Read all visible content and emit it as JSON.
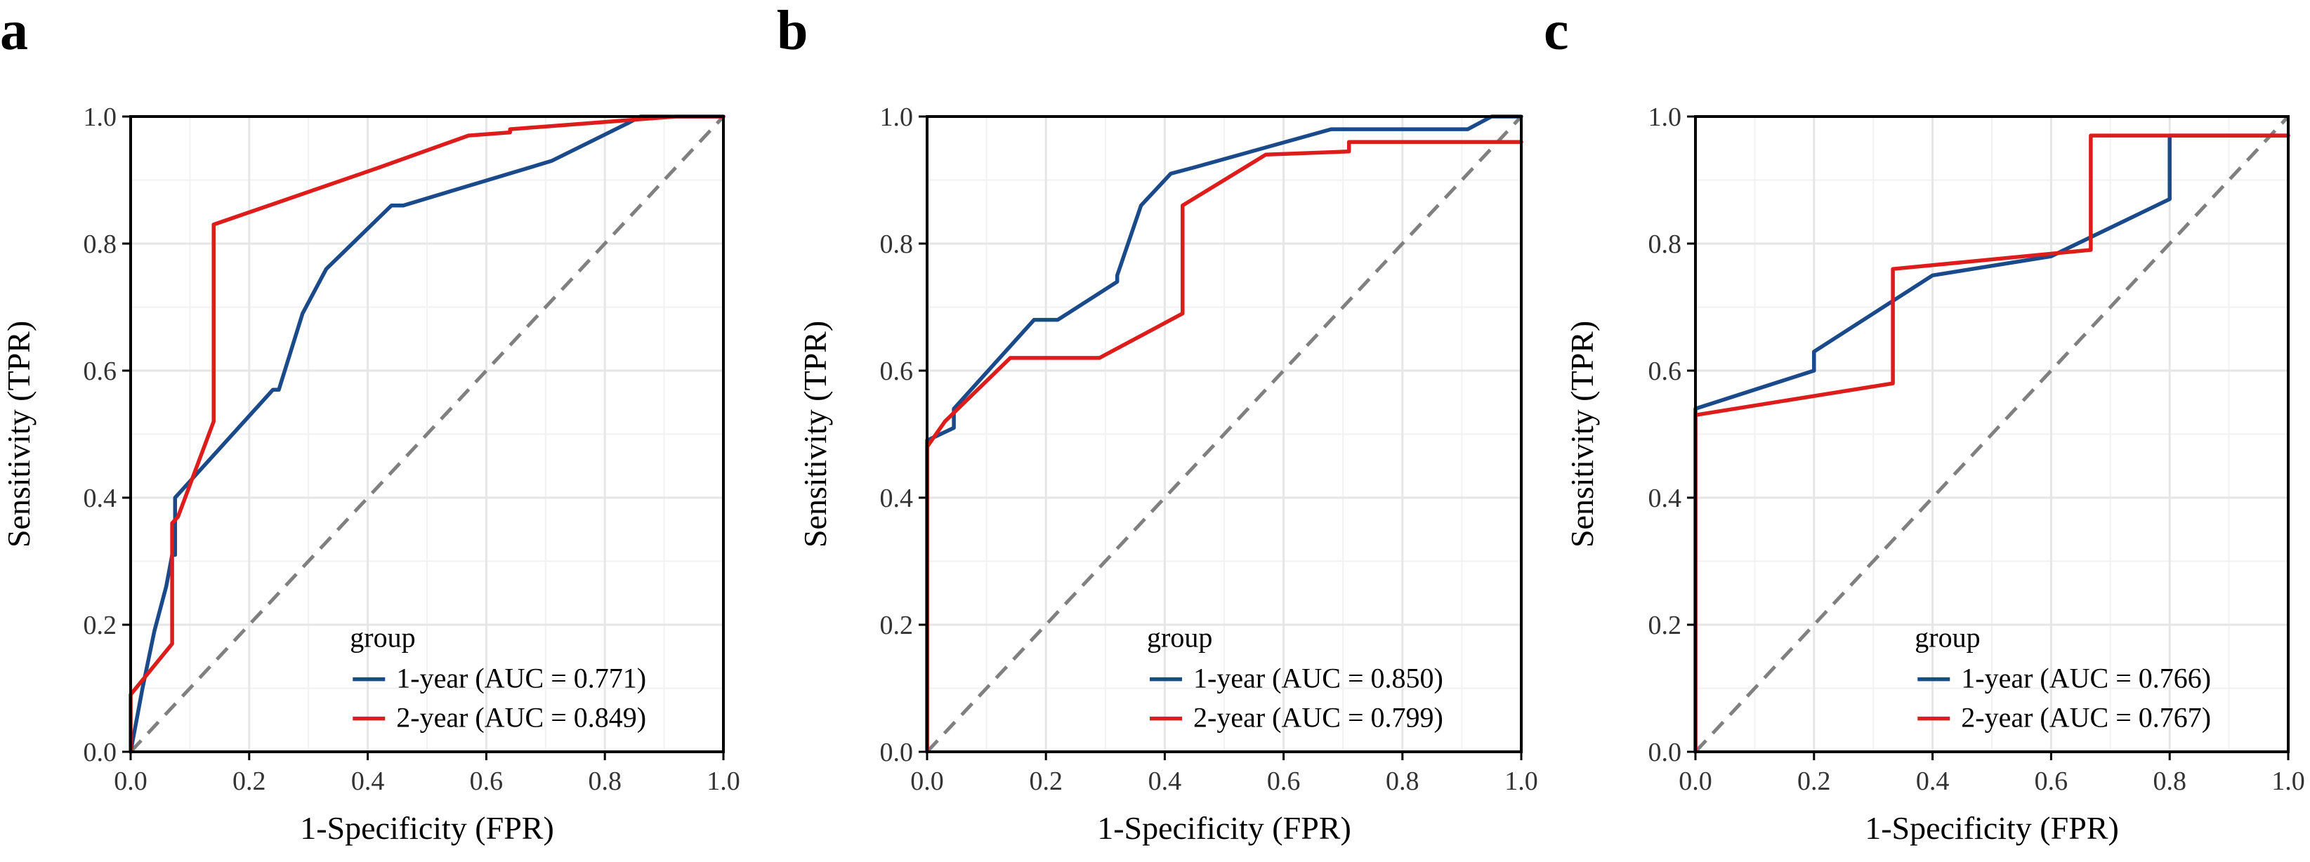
{
  "chart_data": [
    {
      "type": "line",
      "panel_label": "a",
      "xlabel": "1-Specificity (FPR)",
      "ylabel": "Sensitivity (TPR)",
      "xlim": [
        0,
        1
      ],
      "ylim": [
        0,
        1
      ],
      "x_ticks": [
        "0.0",
        "0.2",
        "0.4",
        "0.6",
        "0.8",
        "1.0"
      ],
      "y_ticks": [
        "0.0",
        "0.2",
        "0.4",
        "0.6",
        "0.8",
        "1.0"
      ],
      "grid": true,
      "legend_title": "group",
      "legend_position": "bottom-right",
      "series": [
        {
          "name": "1-year (AUC = 0.771)",
          "color": "#1a4a8a",
          "x": [
            0,
            0.02,
            0.04,
            0.06,
            0.07,
            0.075,
            0.075,
            0.24,
            0.25,
            0.29,
            0.33,
            0.44,
            0.46,
            0.71,
            0.84,
            0.86,
            1.0
          ],
          "y": [
            0,
            0.1,
            0.19,
            0.26,
            0.31,
            0.31,
            0.4,
            0.57,
            0.57,
            0.69,
            0.76,
            0.86,
            0.86,
            0.93,
            0.99,
            1.0,
            1.0
          ]
        },
        {
          "name": "2-year (AUC = 0.849)",
          "color": "#dd1c1c",
          "x": [
            0,
            0,
            0.07,
            0.07,
            0.08,
            0.14,
            0.14,
            0.42,
            0.57,
            0.64,
            0.64,
            0.71,
            0.92,
            1.0
          ],
          "y": [
            0,
            0.09,
            0.17,
            0.36,
            0.37,
            0.52,
            0.83,
            0.92,
            0.97,
            0.975,
            0.98,
            0.985,
            1.0,
            1.0
          ]
        }
      ],
      "reference_line": {
        "x": [
          0,
          1
        ],
        "y": [
          0,
          1
        ],
        "style": "dashed",
        "color": "#808080"
      }
    },
    {
      "type": "line",
      "panel_label": "b",
      "xlabel": "1-Specificity (FPR)",
      "ylabel": "Sensitivity (TPR)",
      "xlim": [
        0,
        1
      ],
      "ylim": [
        0,
        1
      ],
      "x_ticks": [
        "0.0",
        "0.2",
        "0.4",
        "0.6",
        "0.8",
        "1.0"
      ],
      "y_ticks": [
        "0.0",
        "0.2",
        "0.4",
        "0.6",
        "0.8",
        "1.0"
      ],
      "grid": true,
      "legend_title": "group",
      "legend_position": "bottom-right",
      "series": [
        {
          "name": "1-year (AUC = 0.850)",
          "color": "#1a4a8a",
          "x": [
            0,
            0,
            0.045,
            0.045,
            0.18,
            0.22,
            0.32,
            0.32,
            0.36,
            0.41,
            0.45,
            0.68,
            0.91,
            0.95,
            1.0
          ],
          "y": [
            0,
            0.49,
            0.51,
            0.54,
            0.68,
            0.68,
            0.74,
            0.75,
            0.86,
            0.91,
            0.92,
            0.98,
            0.98,
            1.0,
            1.0
          ]
        },
        {
          "name": "2-year (AUC = 0.799)",
          "color": "#dd1c1c",
          "x": [
            0,
            0,
            0.03,
            0.14,
            0.29,
            0.43,
            0.43,
            0.57,
            0.71,
            0.71,
            1.0
          ],
          "y": [
            0,
            0.48,
            0.52,
            0.62,
            0.62,
            0.69,
            0.86,
            0.94,
            0.945,
            0.96,
            0.96
          ]
        }
      ],
      "reference_line": {
        "x": [
          0,
          1
        ],
        "y": [
          0,
          1
        ],
        "style": "dashed",
        "color": "#808080"
      }
    },
    {
      "type": "line",
      "panel_label": "c",
      "xlabel": "1-Specificity (FPR)",
      "ylabel": "Sensitivity (TPR)",
      "xlim": [
        0,
        1
      ],
      "ylim": [
        0,
        1
      ],
      "x_ticks": [
        "0.0",
        "0.2",
        "0.4",
        "0.6",
        "0.8",
        "1.0"
      ],
      "y_ticks": [
        "0.0",
        "0.2",
        "0.4",
        "0.6",
        "0.8",
        "1.0"
      ],
      "grid": true,
      "legend_title": "group",
      "legend_position": "bottom-right",
      "series": [
        {
          "name": "1-year (AUC = 0.766)",
          "color": "#1a4a8a",
          "x": [
            0,
            0,
            0.2,
            0.2,
            0.4,
            0.6,
            0.8,
            0.8,
            1.0
          ],
          "y": [
            0,
            0.54,
            0.6,
            0.63,
            0.75,
            0.78,
            0.87,
            0.97,
            0.97
          ]
        },
        {
          "name": "2-year (AUC = 0.767)",
          "color": "#dd1c1c",
          "x": [
            0,
            0,
            0.333,
            0.333,
            0.667,
            0.667,
            1.0
          ],
          "y": [
            0,
            0.53,
            0.58,
            0.76,
            0.79,
            0.97,
            0.97
          ]
        }
      ],
      "reference_line": {
        "x": [
          0,
          1
        ],
        "y": [
          0,
          1
        ],
        "style": "dashed",
        "color": "#808080"
      }
    }
  ]
}
